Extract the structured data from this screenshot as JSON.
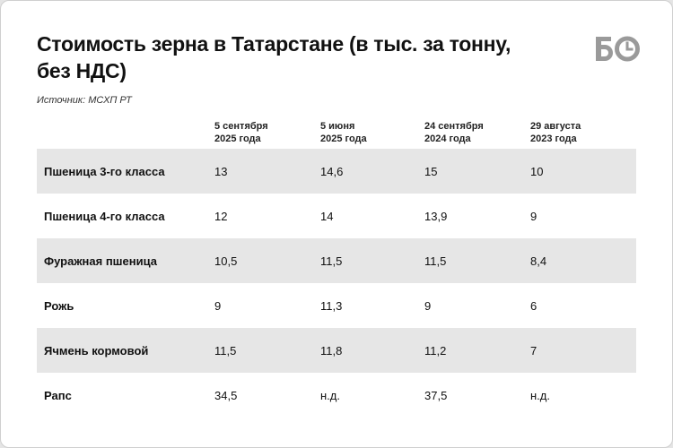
{
  "chart_data": {
    "type": "table",
    "title": "Стоимость зерна в Татарстане (в тыс. за тонну, без НДС)",
    "source": "Источник: МСХП РТ",
    "columns": [
      {
        "line1": "5 сентября",
        "line2": "2025 года"
      },
      {
        "line1": "5 июня",
        "line2": "2025 года"
      },
      {
        "line1": "24 сентября",
        "line2": "2024 года"
      },
      {
        "line1": "29 августа",
        "line2": "2023 года"
      }
    ],
    "rows": [
      {
        "label": "Пшеница 3-го класса",
        "values": [
          "13",
          "14,6",
          "15",
          "10"
        ]
      },
      {
        "label": "Пшеница 4-го класса",
        "values": [
          "12",
          "14",
          "13,9",
          "9"
        ]
      },
      {
        "label": "Фуражная пшеница",
        "values": [
          "10,5",
          "11,5",
          "11,5",
          "8,4"
        ]
      },
      {
        "label": "Рожь",
        "values": [
          "9",
          "11,3",
          "9",
          "6"
        ]
      },
      {
        "label": "Ячмень кормовой",
        "values": [
          "11,5",
          "11,8",
          "11,2",
          "7"
        ]
      },
      {
        "label": "Рапс",
        "values": [
          "34,5",
          "н.д.",
          "37,5",
          "н.д."
        ]
      }
    ]
  },
  "brand": {
    "logo_icon": "bo-logo-icon",
    "color": "#9a9a9a"
  },
  "colors": {
    "row_shade": "#e6e6e6",
    "background": "#e5e5e5",
    "card": "#ffffff"
  }
}
